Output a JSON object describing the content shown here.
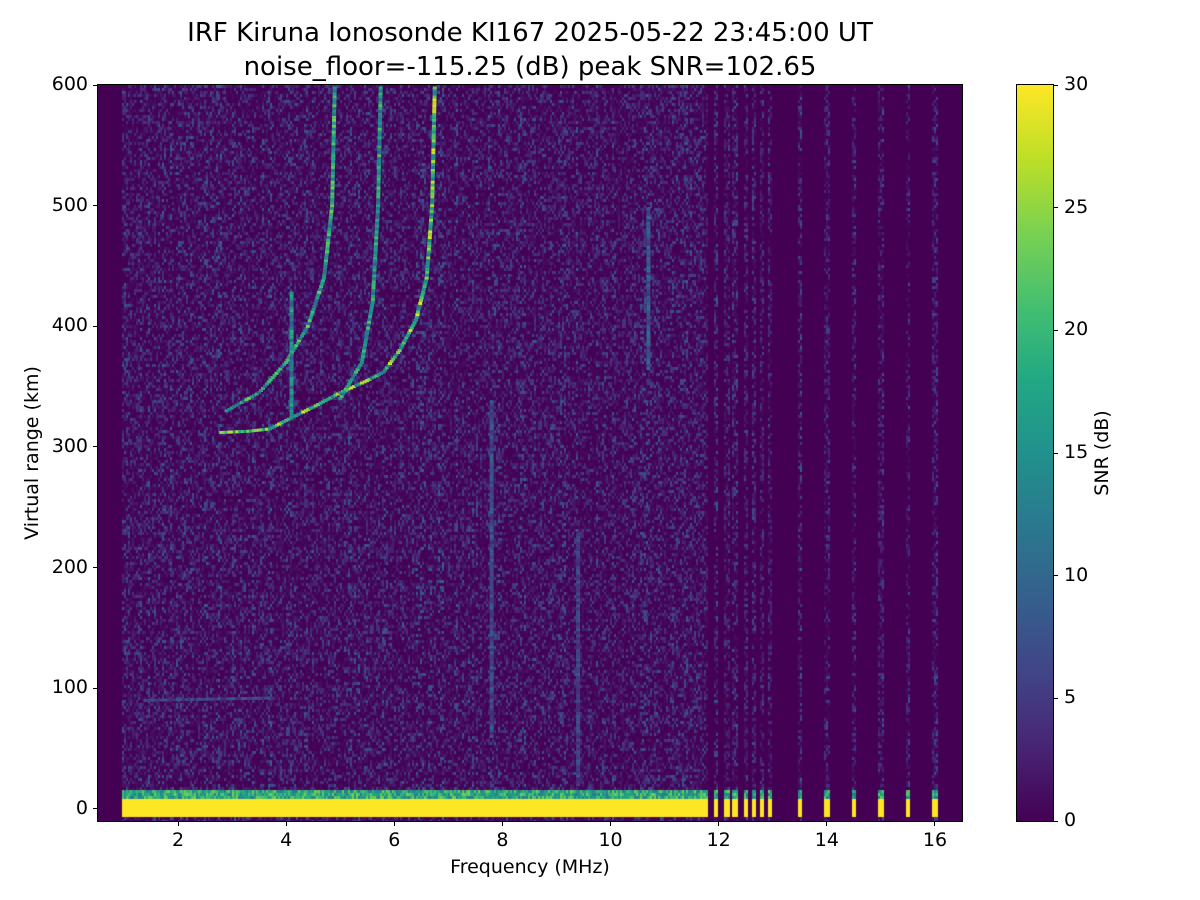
{
  "chart_data": {
    "type": "heatmap",
    "title": "IRF Kiruna Ionosonde KI167 2025-05-22 23:45:00  UT",
    "subtitle": "noise_floor=-115.25 (dB) peak SNR=102.65",
    "xlabel": "Frequency (MHz)",
    "ylabel": "Virtual range (km)",
    "xlim": [
      0.52,
      16.5
    ],
    "ylim": [
      -10,
      600
    ],
    "xticks": [
      "2",
      "4",
      "6",
      "8",
      "10",
      "12",
      "14",
      "16"
    ],
    "yticks": [
      "0",
      "100",
      "200",
      "300",
      "400",
      "500",
      "600"
    ],
    "colorbar": {
      "label": "SNR (dB)",
      "range": [
        0,
        30
      ],
      "ticks": [
        "0",
        "5",
        "10",
        "15",
        "20",
        "25",
        "30"
      ],
      "colormap": "viridis"
    },
    "sweep": {
      "continuous_from_mhz": 0.95,
      "continuous_to_mhz": 11.7,
      "discrete_freqs_mhz": [
        11.75,
        11.95,
        12.15,
        12.3,
        12.5,
        12.65,
        12.8,
        12.95,
        13.5,
        14.0,
        14.5,
        15.0,
        15.5,
        16.0
      ]
    },
    "ground_echo": {
      "range_km": [
        -7,
        15
      ],
      "snr_db": 30
    },
    "traces": [
      {
        "name": "F-trace lower",
        "snr_db": 24,
        "points": [
          [
            2.8,
            312
          ],
          [
            3.3,
            313
          ],
          [
            3.7,
            315
          ],
          [
            4.0,
            322
          ],
          [
            4.5,
            333
          ],
          [
            5.0,
            345
          ],
          [
            5.5,
            355
          ],
          [
            5.8,
            362
          ],
          [
            6.1,
            380
          ],
          [
            6.4,
            405
          ],
          [
            6.6,
            440
          ],
          [
            6.7,
            500
          ],
          [
            6.75,
            600
          ]
        ]
      },
      {
        "name": "F-trace A",
        "snr_db": 20,
        "points": [
          [
            2.9,
            330
          ],
          [
            3.5,
            345
          ],
          [
            4.0,
            370
          ],
          [
            4.4,
            400
          ],
          [
            4.7,
            440
          ],
          [
            4.85,
            500
          ],
          [
            4.9,
            600
          ]
        ]
      },
      {
        "name": "F-trace B",
        "snr_db": 18,
        "points": [
          [
            5.0,
            340
          ],
          [
            5.4,
            370
          ],
          [
            5.6,
            420
          ],
          [
            5.7,
            500
          ],
          [
            5.75,
            600
          ]
        ]
      },
      {
        "name": "Weak trace 4.1 MHz",
        "snr_db": 16,
        "points": [
          [
            4.1,
            325
          ],
          [
            4.1,
            430
          ]
        ]
      },
      {
        "name": "E-layer",
        "snr_db": 7,
        "points": [
          [
            1.4,
            90
          ],
          [
            3.8,
            92
          ]
        ]
      },
      {
        "name": "Streak 10.7 MHz",
        "snr_db": 9,
        "points": [
          [
            10.7,
            365
          ],
          [
            10.7,
            500
          ]
        ]
      },
      {
        "name": "Streak 7.8 MHz",
        "snr_db": 8,
        "points": [
          [
            7.8,
            60
          ],
          [
            7.8,
            340
          ]
        ]
      },
      {
        "name": "Streak 9.4 MHz",
        "snr_db": 7,
        "points": [
          [
            9.4,
            20
          ],
          [
            9.4,
            230
          ]
        ]
      }
    ]
  }
}
